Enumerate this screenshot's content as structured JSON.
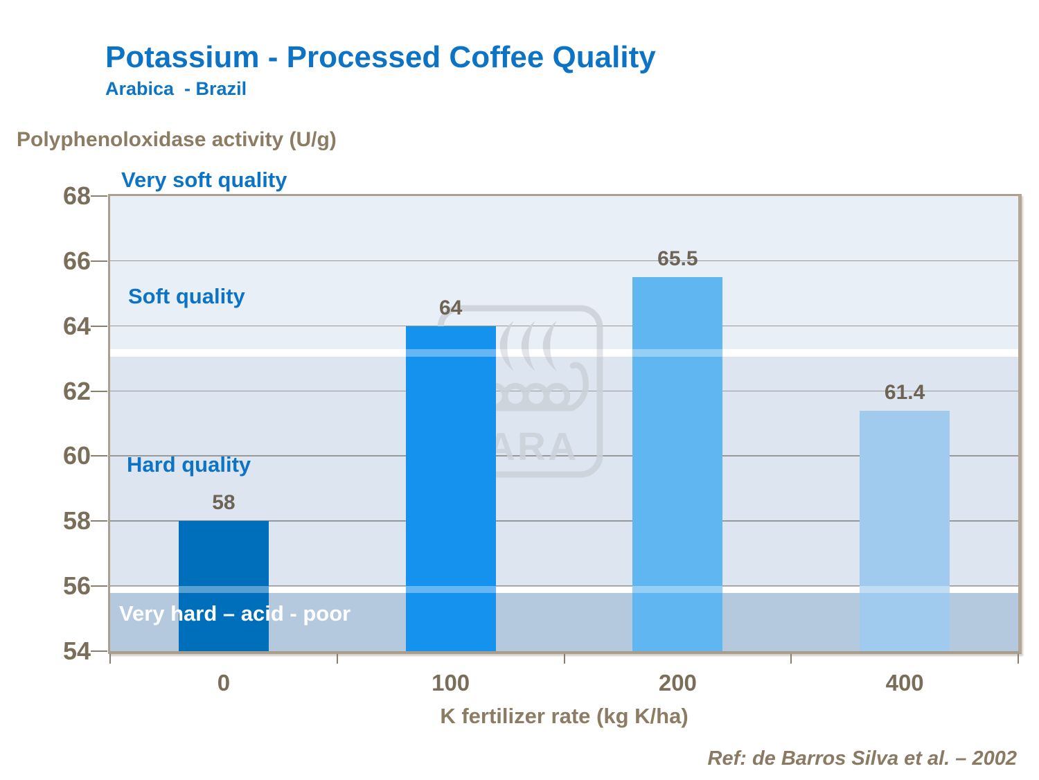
{
  "header": {
    "title": "Potassium - Processed Coffee Quality",
    "subtitle": "Arabica  - Brazil"
  },
  "footer": {
    "reference": "Ref: de Barros Silva et al. – 2002"
  },
  "watermark": {
    "name": "yara-viking-ship-logo",
    "text": "YARA",
    "color": "#ccd1d9"
  },
  "chart_data": {
    "type": "bar",
    "y_axis_title": "Polyphenoloxidase activity (U/g)",
    "x_axis_title": "K fertilizer rate (kg K/ha)",
    "categories": [
      "0",
      "100",
      "200",
      "400"
    ],
    "values": [
      58,
      64,
      65.5,
      61.4
    ],
    "value_labels": [
      "58",
      "64",
      "65.5",
      "61.4"
    ],
    "bar_colors": [
      "#006fbb",
      "#1591ee",
      "#5fb6f1",
      "#a0cbef"
    ],
    "ylim": [
      54,
      68
    ],
    "y_ticks": [
      54,
      56,
      58,
      60,
      62,
      64,
      66,
      68
    ],
    "grid": true,
    "legend": "none",
    "zones": [
      {
        "from": 63.3,
        "to": 68.0,
        "color": "#e9eff7"
      },
      {
        "from": 63.05,
        "to": 63.3,
        "color": "#ffffff"
      },
      {
        "from": 56.0,
        "to": 63.05,
        "color": "#dde6f0"
      },
      {
        "from": 55.79,
        "to": 56.0,
        "color": "#ffffff"
      },
      {
        "from": 54.0,
        "to": 55.79,
        "color": "#b4c9de"
      }
    ],
    "overlay_stripes": [
      {
        "from": 63.05,
        "to": 63.3
      },
      {
        "from": 55.79,
        "to": 56.0
      }
    ],
    "annotations": [
      {
        "text": "Very soft quality",
        "y": 68.49,
        "color": "#0d73c5"
      },
      {
        "text": "Soft quality",
        "y": 64.9,
        "color": "#0d73c5"
      },
      {
        "text": "Hard quality",
        "y": 59.73,
        "color": "#0d73c5"
      },
      {
        "text": "Very hard – acid - poor",
        "y": 55.15,
        "color": "#ffffff"
      }
    ],
    "colors": {
      "title_blue": "#0d73c5",
      "axis_title_tan": "#8c7c64",
      "tick_label": "#7a6e5a",
      "value_label": "#6e6354",
      "grid_line": "#989898",
      "plot_border": "#ab9f8f",
      "reference_text": "#8b7a63"
    }
  }
}
